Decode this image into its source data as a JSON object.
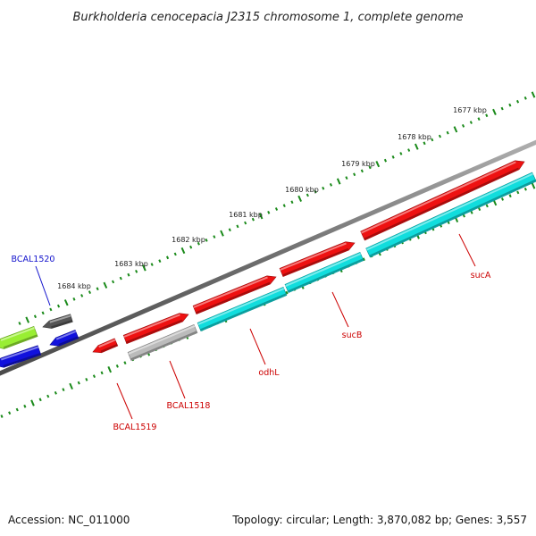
{
  "title": "Burkholderia cenocepacia J2315 chromosome 1, complete genome",
  "footer": {
    "accession": "Accession: NC_011000",
    "summary": "Topology: circular; Length: 3,870,082 bp; Genes: 3,557"
  },
  "ruler": {
    "labels": [
      "1677 kbp",
      "1678 kbp",
      "1679 kbp",
      "1680 kbp",
      "1681 kbp",
      "1682 kbp",
      "1683 kbp",
      "1684 kbp"
    ]
  },
  "genes": [
    {
      "name": "sucA",
      "strand": "plus",
      "color": "#ee1111"
    },
    {
      "name": "sucA",
      "strand": "plus",
      "color": "#11dddd"
    },
    {
      "name": "sucB",
      "strand": "plus",
      "color": "#ee1111"
    },
    {
      "name": "sucB",
      "strand": "plus",
      "color": "#11dddd"
    },
    {
      "name": "odhL",
      "strand": "plus",
      "color": "#ee1111"
    },
    {
      "name": "odhL",
      "strand": "plus",
      "color": "#11dddd"
    },
    {
      "name": "BCAL1518",
      "strand": "plus",
      "color": "#ee1111"
    },
    {
      "name": "BCAL1518",
      "strand": "plus",
      "color": "#bbbbbb"
    },
    {
      "name": "BCAL1519",
      "strand": "minus",
      "color": "#ee1111"
    },
    {
      "name": "BCAL1520",
      "strand": "minus",
      "color": "#555555"
    },
    {
      "name": "BCAL1520",
      "strand": "minus",
      "color": "#1111dd"
    },
    {
      "name": "",
      "strand": "minus",
      "color": "#99ee33"
    },
    {
      "name": "",
      "strand": "minus",
      "color": "#1111dd"
    }
  ],
  "gene_labels": [
    {
      "text": "sucA",
      "color": "#cc0000"
    },
    {
      "text": "sucB",
      "color": "#cc0000"
    },
    {
      "text": "odhL",
      "color": "#cc0000"
    },
    {
      "text": "BCAL1518",
      "color": "#cc0000"
    },
    {
      "text": "BCAL1519",
      "color": "#cc0000"
    },
    {
      "text": "BCAL1520",
      "color": "#1111cc"
    }
  ],
  "colors": {
    "backbone": "#7a7a7a",
    "tick": "#1a8a1a"
  }
}
